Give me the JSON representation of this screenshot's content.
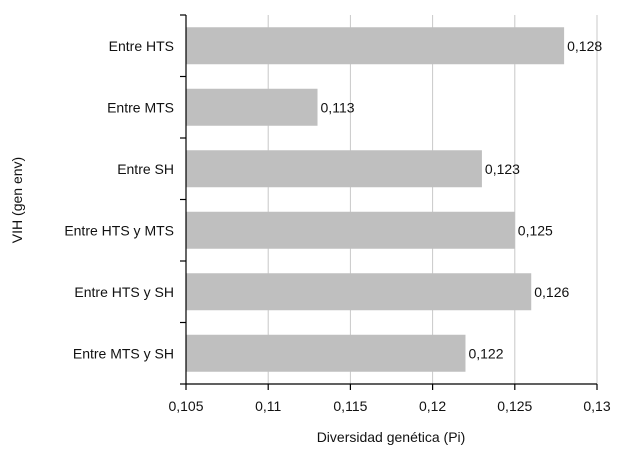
{
  "chart_data": {
    "type": "bar",
    "orientation": "horizontal",
    "categories": [
      "Entre HTS",
      "Entre MTS",
      "Entre SH",
      "Entre HTS y MTS",
      "Entre HTS y SH",
      "Entre MTS y SH"
    ],
    "values": [
      0.128,
      0.113,
      0.123,
      0.125,
      0.126,
      0.122
    ],
    "value_labels": [
      "0,128",
      "0,113",
      "0,123",
      "0,125",
      "0,126",
      "0,122"
    ],
    "xlabel": "Diversidad genética (Pi)",
    "ylabel": "VIH (gen env)",
    "xlim": [
      0.105,
      0.13
    ],
    "xticks": [
      "0,105",
      "0,11",
      "0,115",
      "0,12",
      "0,125",
      "0,13"
    ],
    "grid": "vertical",
    "bar_color": "#bfbfbf"
  }
}
